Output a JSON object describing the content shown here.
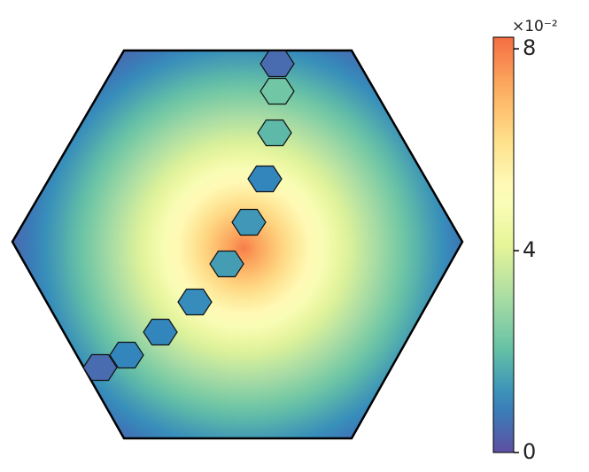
{
  "chart_data": {
    "type": "hexfield",
    "colorbar": {
      "ylim": [
        0,
        8.23
      ],
      "yticks": [
        0,
        4,
        8
      ],
      "offset_text": "×10⁻²"
    },
    "markers": {
      "values": [
        0.5,
        2.2,
        1.9,
        1.0,
        1.3,
        1.4,
        1.1,
        1.0,
        1.0,
        0.5
      ]
    }
  }
}
